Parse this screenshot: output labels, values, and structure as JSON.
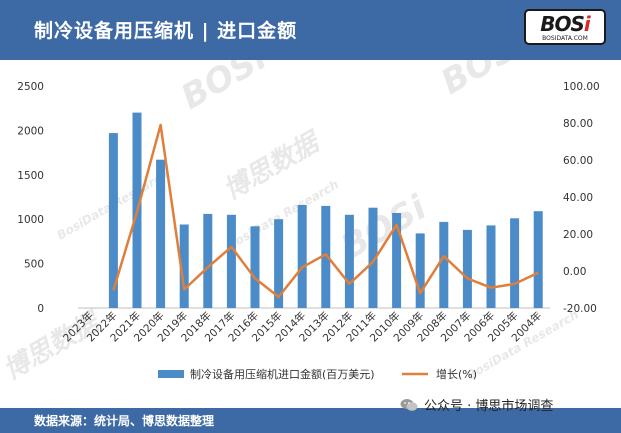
{
  "header": {
    "title": "制冷设备用压缩机 | 进口金额"
  },
  "logo": {
    "main": "BOS",
    "accent": "i",
    "sub": "BOSIDATA.COM"
  },
  "watermark": {
    "text_a": "BOSi",
    "text_b": "博思数据",
    "text_c": "BosiData Research"
  },
  "footer": {
    "source": "数据来源：统计局、博思数据整理"
  },
  "wechat": {
    "icon": "wechat-icon",
    "label": "公众号 · 博思市场调查"
  },
  "colors": {
    "header": "#3d6aa5",
    "bar": "#4a8bc8",
    "line": "#e07f3a"
  },
  "chart_data": {
    "type": "bar",
    "categories": [
      "2023年",
      "2022年",
      "2021年",
      "2020年",
      "2019年",
      "2018年",
      "2017年",
      "2016年",
      "2015年",
      "2014年",
      "2013年",
      "2012年",
      "2011年",
      "2010年",
      "2009年",
      "2008年",
      "2007年",
      "2006年",
      "2005年",
      "2004年"
    ],
    "series": [
      {
        "name": "制冷设备用压缩机进口金额(百万美元)",
        "type": "bar",
        "axis": "left",
        "values": [
          null,
          1970,
          2200,
          1670,
          940,
          1060,
          1050,
          920,
          1000,
          1160,
          1150,
          1050,
          1130,
          1070,
          840,
          970,
          880,
          930,
          1010,
          1090
        ]
      },
      {
        "name": "增长(%)",
        "type": "line",
        "axis": "right",
        "values": [
          null,
          -10.5,
          32,
          79,
          -10,
          2,
          13,
          -4,
          -14,
          2,
          9,
          -7,
          5,
          25,
          -12,
          8,
          -4,
          -9,
          -7,
          -1
        ]
      }
    ],
    "y_left": {
      "ylim": [
        0,
        2500
      ],
      "ticks": [
        "0",
        "500",
        "1000",
        "1500",
        "2000",
        "2500"
      ]
    },
    "y_right": {
      "ylim": [
        -20,
        100
      ],
      "ticks": [
        "-20.00",
        "0.00",
        "20.00",
        "40.00",
        "60.00",
        "80.00",
        "100.00"
      ]
    },
    "grid": false,
    "legend_position": "bottom"
  }
}
